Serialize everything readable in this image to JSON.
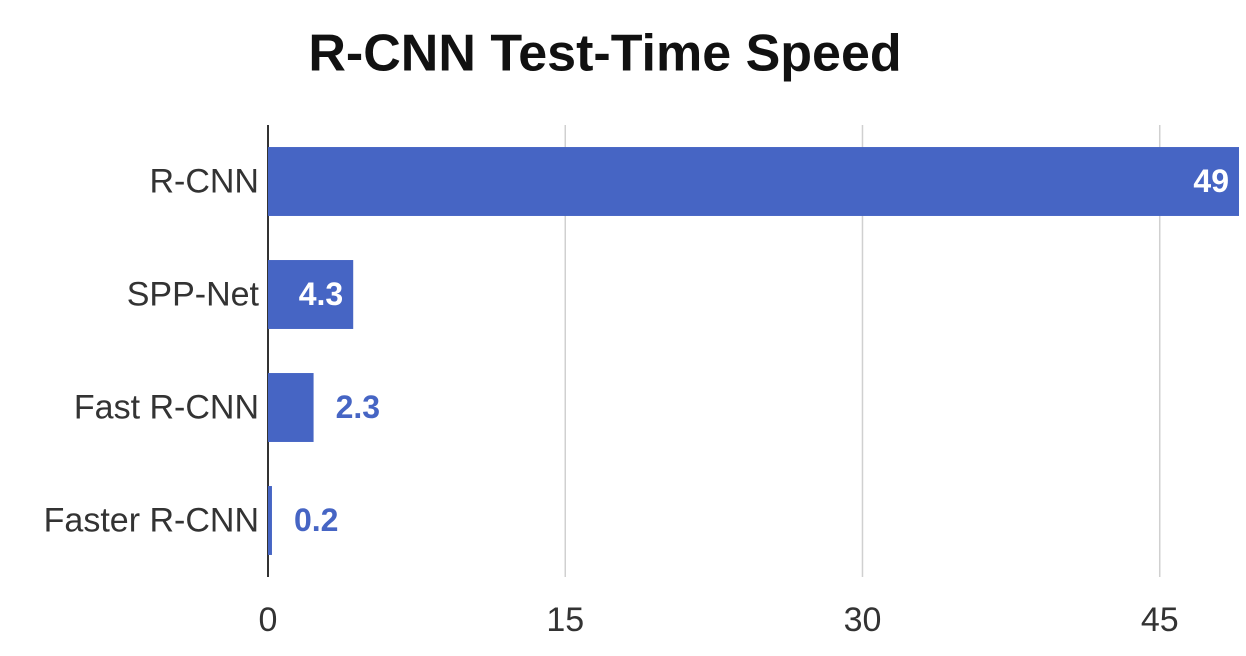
{
  "chart_data": {
    "type": "bar",
    "orientation": "horizontal",
    "title": "R-CNN Test-Time Speed",
    "categories": [
      "R-CNN",
      "SPP-Net",
      "Fast R-CNN",
      "Faster R-CNN"
    ],
    "values": [
      49,
      4.3,
      2.3,
      0.2
    ],
    "color": "#4665c4",
    "xlim": [
      0,
      49
    ],
    "xticks": [
      0,
      15,
      30,
      45
    ],
    "grid": true
  }
}
